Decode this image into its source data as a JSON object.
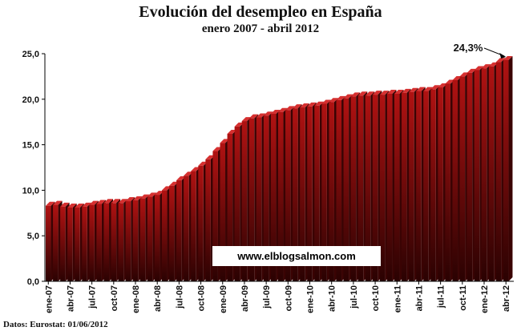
{
  "chart_data": {
    "type": "bar",
    "title": "Evolución del desempleo en España",
    "subtitle": "enero 2007 - abril 2012",
    "source": "Datos: Eurostat: 01/06/2012",
    "watermark": "www.elblogsalmon.com",
    "annotation": "24,3%",
    "ylim": [
      0,
      25
    ],
    "yticks": [
      "0,0",
      "5,0",
      "10,0",
      "15,0",
      "20,0",
      "25,0"
    ],
    "xlabel": "",
    "ylabel": "",
    "grid": false,
    "colors": {
      "bar_top": "#b01212",
      "bar_bottom": "#2a0202",
      "bar_edge": "#d63030",
      "axis": "#000000"
    },
    "categories": [
      "ene-07",
      "feb-07",
      "mar-07",
      "abr-07",
      "may-07",
      "jun-07",
      "jul-07",
      "ago-07",
      "sep-07",
      "oct-07",
      "nov-07",
      "dic-07",
      "ene-08",
      "feb-08",
      "mar-08",
      "abr-08",
      "may-08",
      "jun-08",
      "jul-08",
      "ago-08",
      "sep-08",
      "oct-08",
      "nov-08",
      "dic-08",
      "ene-09",
      "feb-09",
      "mar-09",
      "abr-09",
      "may-09",
      "jun-09",
      "jul-09",
      "ago-09",
      "sep-09",
      "oct-09",
      "nov-09",
      "dic-09",
      "ene-10",
      "feb-10",
      "mar-10",
      "abr-10",
      "may-10",
      "jun-10",
      "jul-10",
      "ago-10",
      "sep-10",
      "oct-10",
      "nov-10",
      "dic-10",
      "ene-11",
      "feb-11",
      "mar-11",
      "abr-11",
      "may-11",
      "jun-11",
      "jul-11",
      "ago-11",
      "sep-11",
      "oct-11",
      "nov-11",
      "dic-11",
      "ene-12",
      "feb-12",
      "mar-12",
      "abr-12"
    ],
    "xtick_labels": [
      "ene-07",
      "abr-07",
      "jul-07",
      "oct-07",
      "ene-08",
      "abr-08",
      "jul-08",
      "oct-08",
      "ene-09",
      "abr-09",
      "jul-09",
      "oct-09",
      "ene-10",
      "abr-10",
      "jul-10",
      "oct-10",
      "ene-11",
      "abr-11",
      "jul-11",
      "oct-11",
      "ene-12",
      "abr-12"
    ],
    "series": [
      {
        "values": [
          8.3,
          8.4,
          8.2,
          8.1,
          8.1,
          8.2,
          8.4,
          8.5,
          8.6,
          8.6,
          8.6,
          8.8,
          8.9,
          9.1,
          9.3,
          9.5,
          10.0,
          10.5,
          11.1,
          11.6,
          12.1,
          12.7,
          13.4,
          14.3,
          15.2,
          16.2,
          17.0,
          17.6,
          17.9,
          18.0,
          18.2,
          18.4,
          18.6,
          18.8,
          19.0,
          19.1,
          19.2,
          19.3,
          19.5,
          19.7,
          19.9,
          20.1,
          20.3,
          20.4,
          20.4,
          20.5,
          20.5,
          20.6,
          20.6,
          20.7,
          20.8,
          20.9,
          20.9,
          21.1,
          21.3,
          21.7,
          22.1,
          22.5,
          22.9,
          23.2,
          23.4,
          23.6,
          24.1,
          24.3
        ]
      }
    ]
  }
}
